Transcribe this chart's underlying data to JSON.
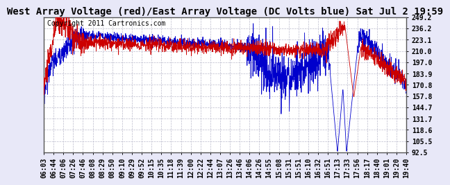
{
  "title": "West Array Voltage (red)/East Array Voltage (DC Volts blue) Sat Jul 2 19:59",
  "copyright": "Copyright 2011 Cartronics.com",
  "yticks": [
    92.5,
    105.5,
    118.6,
    131.7,
    144.7,
    157.8,
    170.8,
    183.9,
    197.0,
    210.0,
    223.1,
    236.2,
    249.2
  ],
  "ymin": 92.5,
  "ymax": 249.2,
  "xtick_labels": [
    "06:03",
    "06:44",
    "07:06",
    "07:26",
    "07:46",
    "08:08",
    "08:29",
    "08:50",
    "09:10",
    "09:29",
    "09:52",
    "10:15",
    "10:35",
    "11:18",
    "11:39",
    "12:00",
    "12:22",
    "12:44",
    "13:07",
    "13:26",
    "13:46",
    "14:06",
    "14:26",
    "14:55",
    "15:08",
    "15:31",
    "15:51",
    "16:10",
    "16:32",
    "16:51",
    "17:13",
    "17:33",
    "17:56",
    "18:17",
    "18:40",
    "19:01",
    "19:20",
    "19:40"
  ],
  "bg_color": "#e8e8f8",
  "plot_bg_color": "#ffffff",
  "grid_color": "#bbbbcc",
  "title_fontsize": 10,
  "copyright_fontsize": 7,
  "tick_fontsize": 7,
  "red_line_color": "#cc0000",
  "blue_line_color": "#0000cc"
}
